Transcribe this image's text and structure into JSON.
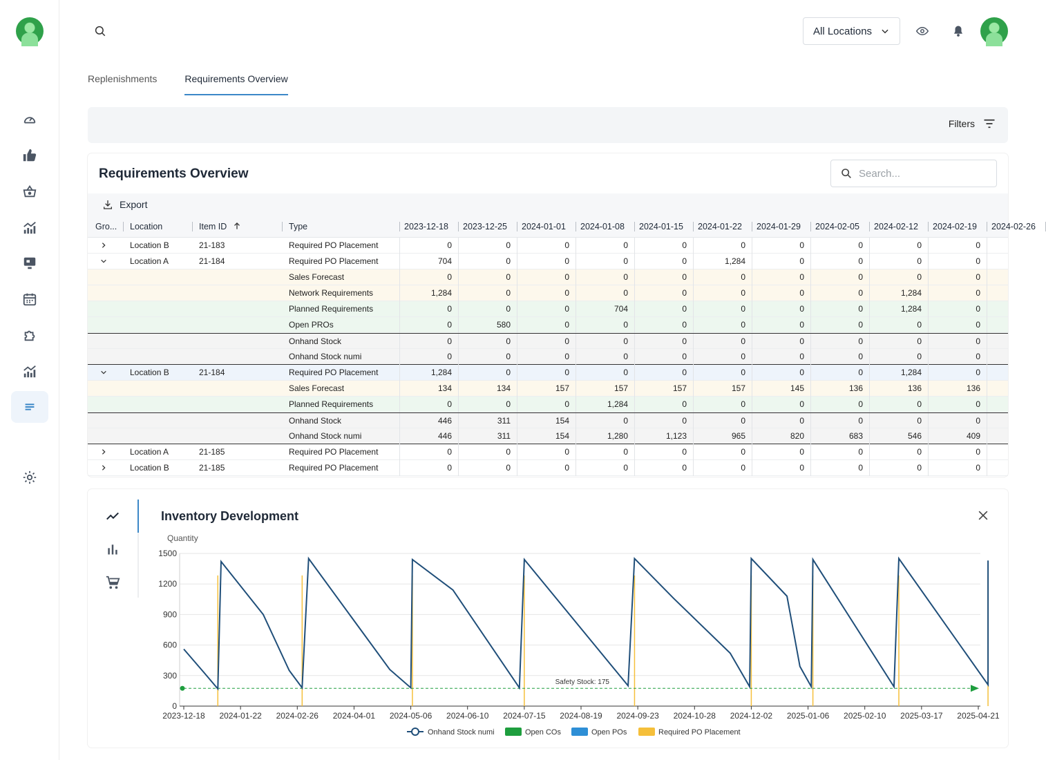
{
  "header": {
    "location_select": "All Locations"
  },
  "tabs": [
    {
      "label": "Replenishments",
      "active": false
    },
    {
      "label": "Requirements Overview",
      "active": true
    }
  ],
  "filters": {
    "label": "Filters"
  },
  "table_card": {
    "title": "Requirements Overview",
    "search_placeholder": "Search...",
    "export_label": "Export",
    "columns": {
      "group": "Gro...",
      "location": "Location",
      "item_id": "Item ID",
      "type": "Type",
      "dates": [
        "2023-12-18",
        "2023-12-25",
        "2024-01-01",
        "2024-01-08",
        "2024-01-15",
        "2024-01-22",
        "2024-01-29",
        "2024-02-05",
        "2024-02-12",
        "2024-02-19",
        "2024-02-26"
      ]
    },
    "rows": [
      {
        "chev": "right",
        "location": "Location B",
        "item": "21-183",
        "type": "Required PO Placement",
        "bg": "w",
        "values": [
          "0",
          "0",
          "0",
          "0",
          "0",
          "0",
          "0",
          "0",
          "0",
          "0",
          ""
        ]
      },
      {
        "chev": "down",
        "location": "Location A",
        "item": "21-184",
        "type": "Required PO Placement",
        "bg": "w",
        "values": [
          "704",
          "0",
          "0",
          "0",
          "0",
          "1,284",
          "0",
          "0",
          "0",
          "0",
          ""
        ]
      },
      {
        "chev": "",
        "location": "",
        "item": "",
        "type": "Sales Forecast",
        "bg": "y",
        "values": [
          "0",
          "0",
          "0",
          "0",
          "0",
          "0",
          "0",
          "0",
          "0",
          "0",
          ""
        ]
      },
      {
        "chev": "",
        "location": "",
        "item": "",
        "type": "Network Requirements",
        "bg": "y",
        "values": [
          "1,284",
          "0",
          "0",
          "0",
          "0",
          "0",
          "0",
          "0",
          "1,284",
          "0",
          ""
        ]
      },
      {
        "chev": "",
        "location": "",
        "item": "",
        "type": "Planned Requirements",
        "bg": "g",
        "values": [
          "0",
          "0",
          "0",
          "704",
          "0",
          "0",
          "0",
          "0",
          "1,284",
          "0",
          ""
        ]
      },
      {
        "chev": "",
        "location": "",
        "item": "",
        "type": "Open PROs",
        "bg": "g",
        "values": [
          "0",
          "580",
          "0",
          "0",
          "0",
          "0",
          "0",
          "0",
          "0",
          "0",
          ""
        ]
      },
      {
        "chev": "",
        "location": "",
        "item": "",
        "type": "Onhand Stock",
        "bg": "s",
        "values": [
          "0",
          "0",
          "0",
          "0",
          "0",
          "0",
          "0",
          "0",
          "0",
          "0",
          ""
        ]
      },
      {
        "chev": "",
        "location": "",
        "item": "",
        "type": "Onhand Stock numi",
        "bg": "s",
        "values": [
          "0",
          "0",
          "0",
          "0",
          "0",
          "0",
          "0",
          "0",
          "0",
          "0",
          ""
        ]
      },
      {
        "chev": "down",
        "location": "Location B",
        "item": "21-184",
        "type": "Required PO Placement",
        "bg": "b",
        "values": [
          "1,284",
          "0",
          "0",
          "0",
          "0",
          "0",
          "0",
          "0",
          "1,284",
          "0",
          ""
        ]
      },
      {
        "chev": "",
        "location": "",
        "item": "",
        "type": "Sales Forecast",
        "bg": "y",
        "values": [
          "134",
          "134",
          "157",
          "157",
          "157",
          "157",
          "145",
          "136",
          "136",
          "136",
          ""
        ]
      },
      {
        "chev": "",
        "location": "",
        "item": "",
        "type": "Planned Requirements",
        "bg": "g",
        "values": [
          "0",
          "0",
          "0",
          "1,284",
          "0",
          "0",
          "0",
          "0",
          "0",
          "0",
          ""
        ]
      },
      {
        "chev": "",
        "location": "",
        "item": "",
        "type": "Onhand Stock",
        "bg": "s",
        "values": [
          "446",
          "311",
          "154",
          "0",
          "0",
          "0",
          "0",
          "0",
          "0",
          "0",
          ""
        ]
      },
      {
        "chev": "",
        "location": "",
        "item": "",
        "type": "Onhand Stock numi",
        "bg": "s",
        "values": [
          "446",
          "311",
          "154",
          "1,280",
          "1,123",
          "965",
          "820",
          "683",
          "546",
          "409",
          ""
        ]
      },
      {
        "chev": "right",
        "location": "Location A",
        "item": "21-185",
        "type": "Required PO Placement",
        "bg": "w",
        "values": [
          "0",
          "0",
          "0",
          "0",
          "0",
          "0",
          "0",
          "0",
          "0",
          "0",
          ""
        ]
      },
      {
        "chev": "right",
        "location": "Location B",
        "item": "21-185",
        "type": "Required PO Placement",
        "bg": "w",
        "values": [
          "0",
          "0",
          "0",
          "0",
          "0",
          "0",
          "0",
          "0",
          "0",
          "0",
          ""
        ]
      }
    ]
  },
  "chart_card": {
    "title": "Inventory Development"
  },
  "chart_data": {
    "type": "line",
    "ylabel": "Quantity",
    "ylim": [
      0,
      1500
    ],
    "yticks": [
      0,
      300,
      600,
      900,
      1200,
      1500
    ],
    "xticks": [
      "2023-12-18",
      "2024-01-22",
      "2024-02-26",
      "2024-04-01",
      "2024-05-06",
      "2024-06-10",
      "2024-07-15",
      "2024-08-19",
      "2024-09-23",
      "2024-10-28",
      "2024-12-02",
      "2025-01-06",
      "2025-02-10",
      "2025-03-17",
      "2025-04-21"
    ],
    "grid": true,
    "legend_position": "bottom",
    "safety_stock": {
      "label": "Safety Stock: 175",
      "value": 175
    },
    "series": [
      {
        "name": "Onhand Stock numi",
        "color": "#1f4e79",
        "points": [
          [
            "2023-12-18",
            560
          ],
          [
            "2023-12-31",
            320
          ],
          [
            "2024-01-08",
            170
          ],
          [
            "2024-01-10",
            1420
          ],
          [
            "2024-02-05",
            900
          ],
          [
            "2024-02-21",
            350
          ],
          [
            "2024-02-29",
            180
          ],
          [
            "2024-03-04",
            1450
          ],
          [
            "2024-04-23",
            360
          ],
          [
            "2024-05-06",
            180
          ],
          [
            "2024-05-07",
            1440
          ],
          [
            "2024-06-01",
            1140
          ],
          [
            "2024-07-12",
            180
          ],
          [
            "2024-07-15",
            1440
          ],
          [
            "2024-09-17",
            200
          ],
          [
            "2024-09-21",
            1450
          ],
          [
            "2024-10-15",
            1060
          ],
          [
            "2024-11-19",
            520
          ],
          [
            "2024-12-01",
            190
          ],
          [
            "2024-12-02",
            1450
          ],
          [
            "2024-12-24",
            1080
          ],
          [
            "2025-01-01",
            390
          ],
          [
            "2025-01-08",
            190
          ],
          [
            "2025-01-09",
            1440
          ],
          [
            "2025-02-28",
            190
          ],
          [
            "2025-03-03",
            1450
          ],
          [
            "2025-04-27",
            210
          ],
          [
            "2025-04-27",
            1430
          ]
        ]
      },
      {
        "name": "Open COs",
        "color": "#1e9e3e",
        "points": []
      },
      {
        "name": "Open POs",
        "color": "#2e8fd6",
        "points": []
      },
      {
        "name": "Required PO Placement",
        "color": "#f5bf3a",
        "points": [
          [
            "2024-01-08",
            1284
          ],
          [
            "2024-02-29",
            1284
          ],
          [
            "2024-05-07",
            1284
          ],
          [
            "2024-07-15",
            1284
          ],
          [
            "2024-09-21",
            1284
          ],
          [
            "2024-12-02",
            1284
          ],
          [
            "2025-01-09",
            1284
          ],
          [
            "2025-03-03",
            1284
          ],
          [
            "2025-04-27",
            1284
          ]
        ]
      }
    ]
  },
  "colors": {
    "accent": "#3b87c7",
    "line": "#1f4e79",
    "safety": "#1e9e3e",
    "po": "#f5bf3a"
  }
}
